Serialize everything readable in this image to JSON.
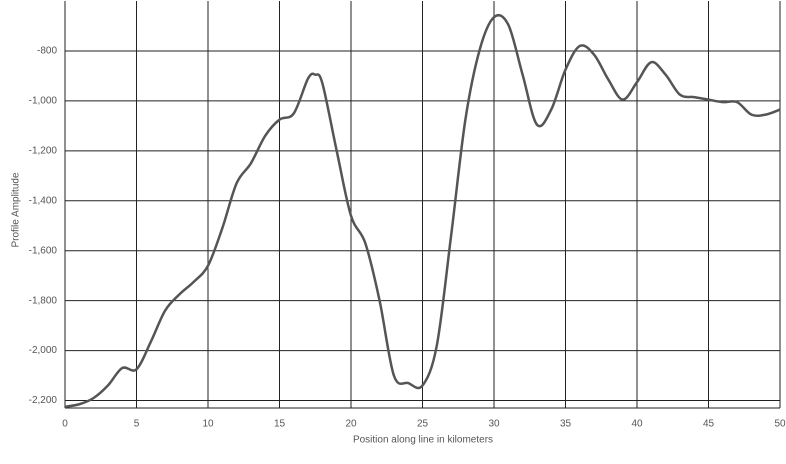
{
  "chart_data": {
    "type": "line",
    "xlabel": "Position along line in kilometers",
    "ylabel": "Profile Amplitude",
    "x": [
      0,
      1,
      2,
      3,
      4,
      5,
      6,
      7,
      8,
      9,
      10,
      11,
      12,
      13,
      14,
      15,
      16,
      17,
      17.5,
      18,
      19,
      20,
      21,
      22,
      23,
      24,
      25,
      26,
      27,
      28,
      29,
      30,
      31,
      32,
      33,
      34,
      35,
      36,
      37,
      38,
      39,
      40,
      41,
      42,
      43,
      44,
      45,
      46,
      47,
      48,
      49,
      50
    ],
    "series": [
      {
        "name": "Profile Amplitude",
        "color": "#555555",
        "values": [
          -2225,
          -2215,
          -2190,
          -2140,
          -2070,
          -2075,
          -1965,
          -1840,
          -1775,
          -1725,
          -1660,
          -1510,
          -1330,
          -1250,
          -1140,
          -1075,
          -1050,
          -910,
          -895,
          -930,
          -1200,
          -1460,
          -1570,
          -1800,
          -2100,
          -2130,
          -2140,
          -1980,
          -1540,
          -1075,
          -795,
          -665,
          -695,
          -895,
          -1095,
          -1035,
          -875,
          -780,
          -815,
          -915,
          -995,
          -925,
          -845,
          -895,
          -975,
          -985,
          -995,
          -1005,
          -1005,
          -1055,
          -1055,
          -1035
        ]
      }
    ],
    "xlim": [
      0,
      50
    ],
    "xticks": [
      0,
      5,
      10,
      15,
      20,
      25,
      30,
      35,
      40,
      45,
      50
    ],
    "ylim": [
      -2230,
      -600
    ],
    "yticks": [
      -800,
      {
        "value": -1000,
        "label": "-1,000"
      },
      {
        "value": -1200,
        "label": "-1,200"
      },
      {
        "value": -1400,
        "label": "-1,400"
      },
      {
        "value": -1600,
        "label": "-1,600"
      },
      {
        "value": -1800,
        "label": "-1,800"
      },
      {
        "value": -2000,
        "label": "-2,000"
      },
      {
        "value": -2200,
        "label": "-2,200"
      }
    ],
    "grid": true
  }
}
